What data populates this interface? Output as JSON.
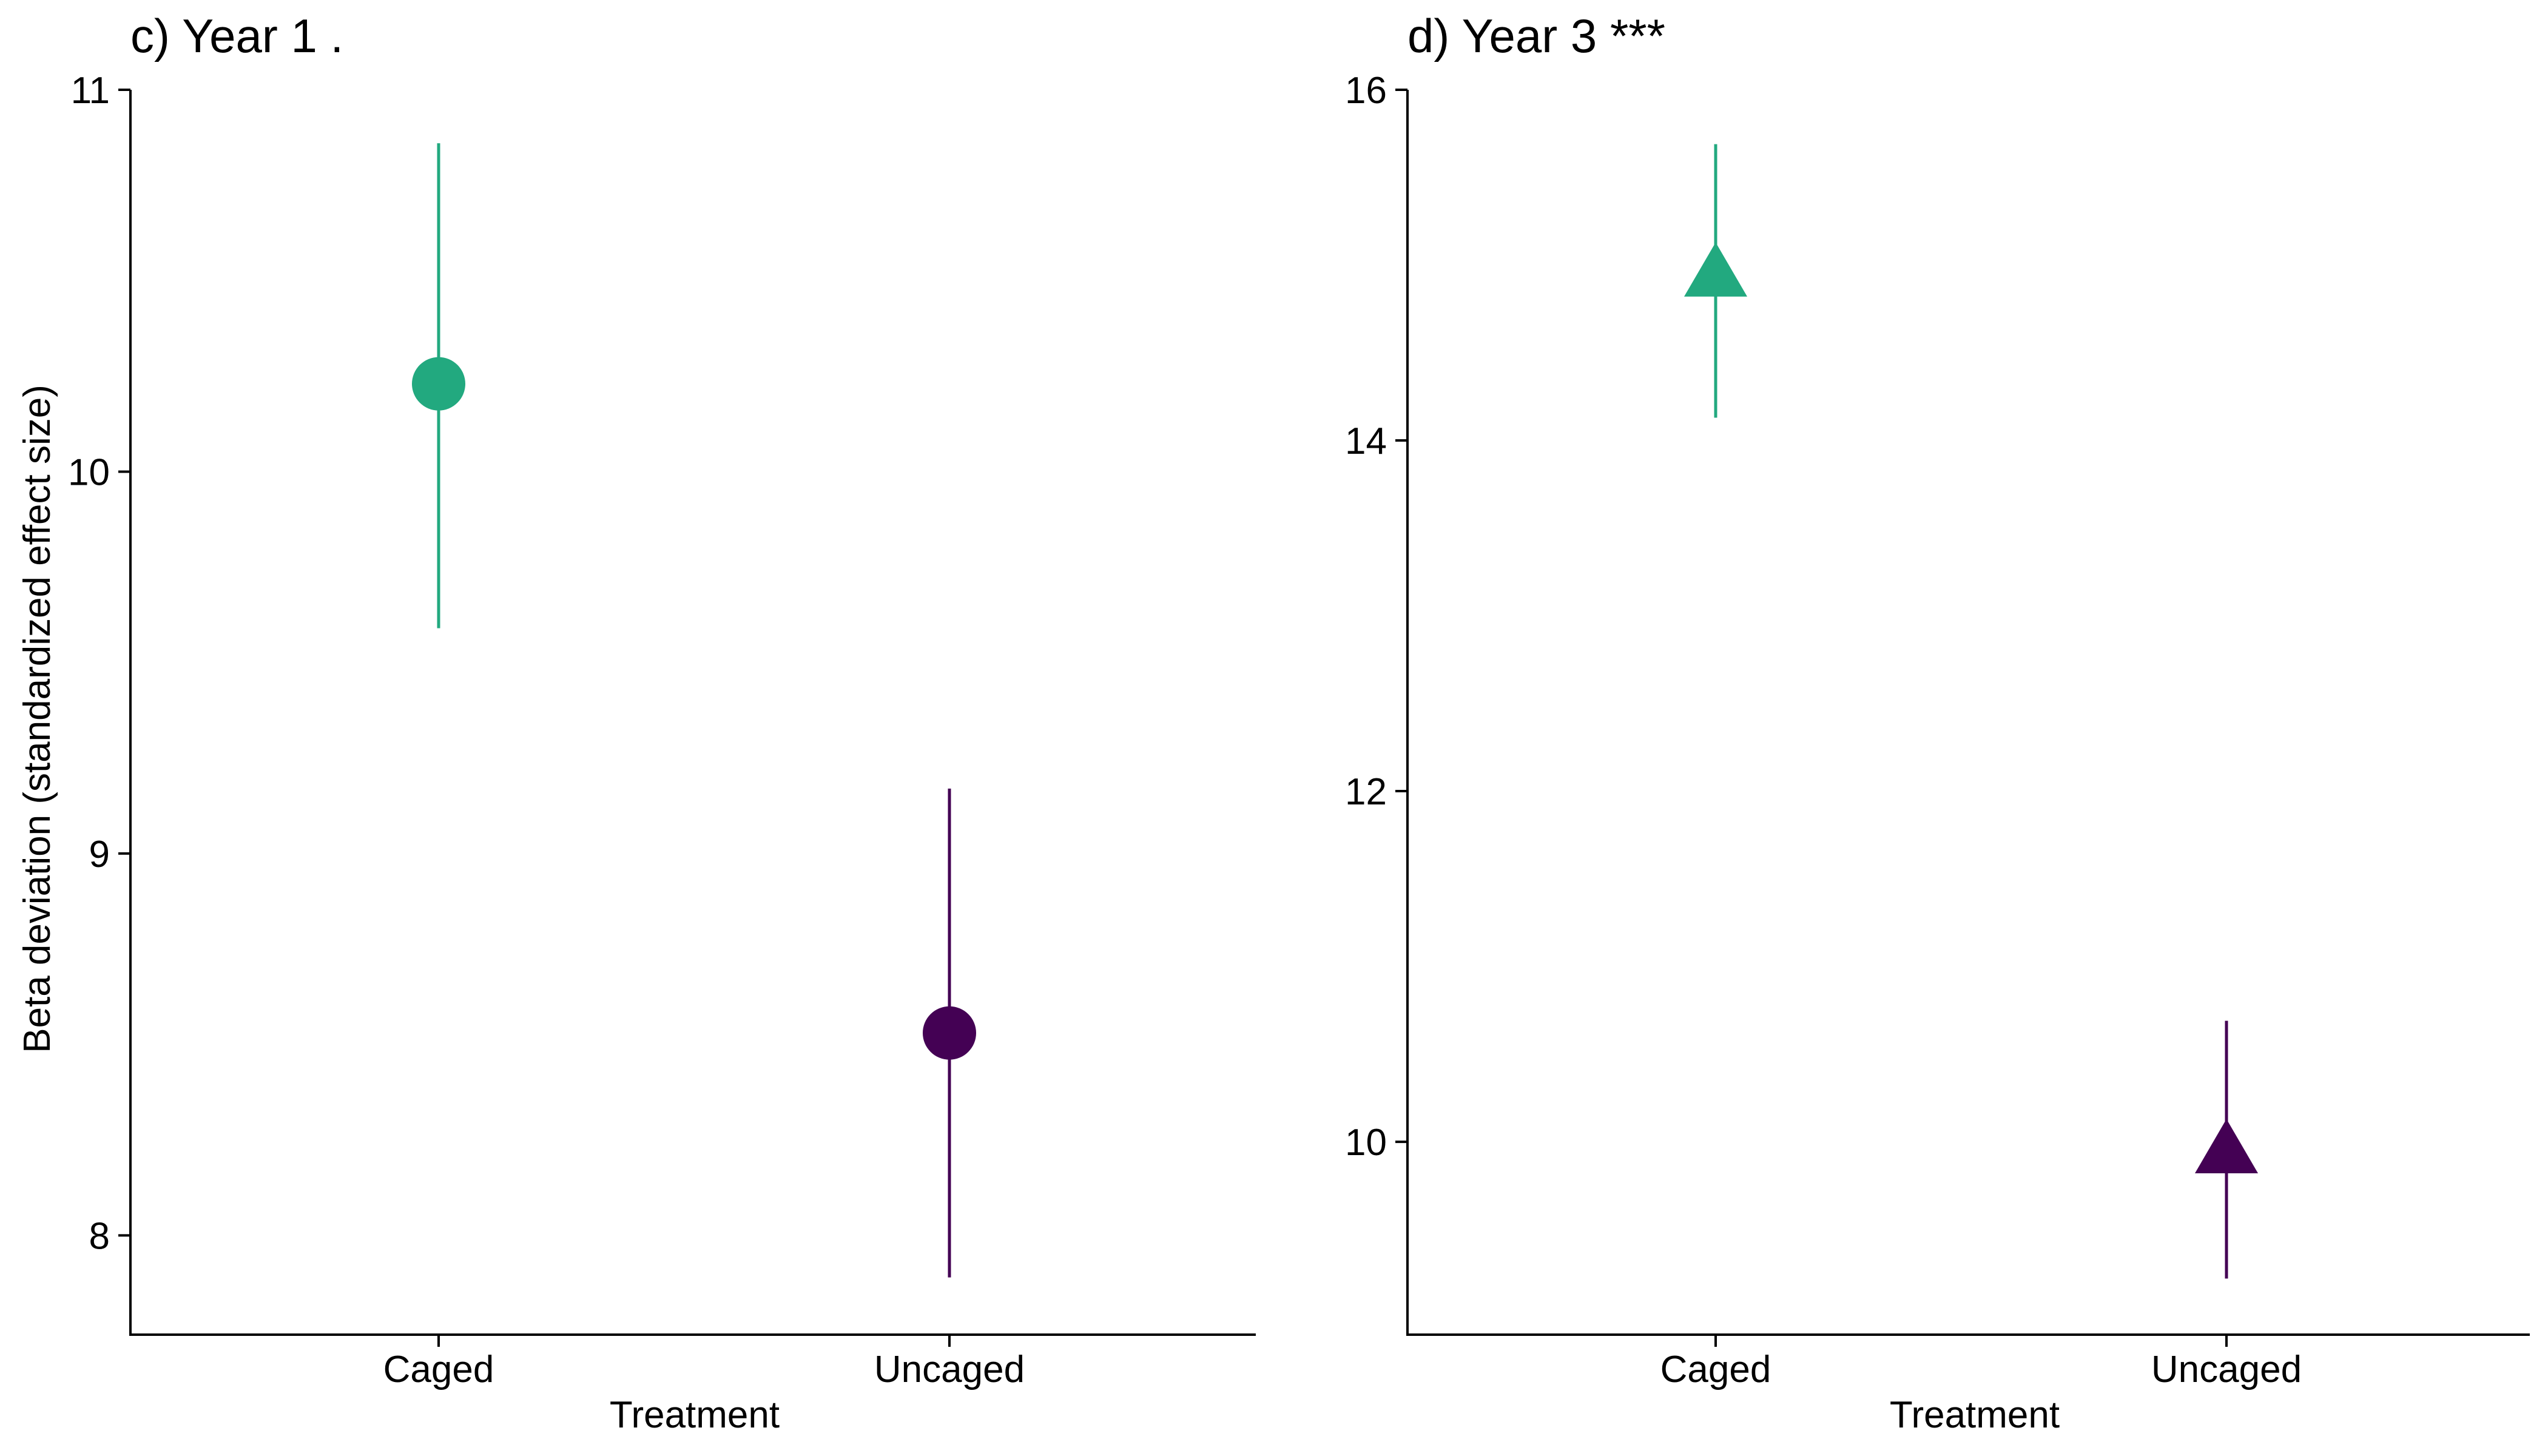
{
  "chart_data": [
    {
      "type": "scatter",
      "title": "c) Year 1 .",
      "xlabel": "Treatment",
      "ylabel": "Beta deviation (standardized effect size)",
      "categories": [
        "Caged",
        "Uncaged"
      ],
      "ylim": [
        7.74,
        11.0
      ],
      "yticks": [
        8,
        9,
        10,
        11
      ],
      "marker": "circle",
      "grid": false,
      "points": [
        {
          "category": "Caged",
          "y": 10.23,
          "lower": 9.59,
          "upper": 10.86,
          "color": "#22a97f"
        },
        {
          "category": "Uncaged",
          "y": 8.53,
          "lower": 7.89,
          "upper": 9.17,
          "color": "#440154"
        }
      ]
    },
    {
      "type": "scatter",
      "title": "d) Year 3 ***",
      "xlabel": "Treatment",
      "ylabel": "",
      "categories": [
        "Caged",
        "Uncaged"
      ],
      "ylim": [
        8.9,
        16.0
      ],
      "yticks": [
        10,
        12,
        14,
        16
      ],
      "marker": "triangle",
      "grid": false,
      "points": [
        {
          "category": "Caged",
          "y": 14.95,
          "lower": 14.13,
          "upper": 15.69,
          "color": "#22a97f"
        },
        {
          "category": "Uncaged",
          "y": 9.95,
          "lower": 9.22,
          "upper": 10.69,
          "color": "#440154"
        }
      ]
    }
  ]
}
